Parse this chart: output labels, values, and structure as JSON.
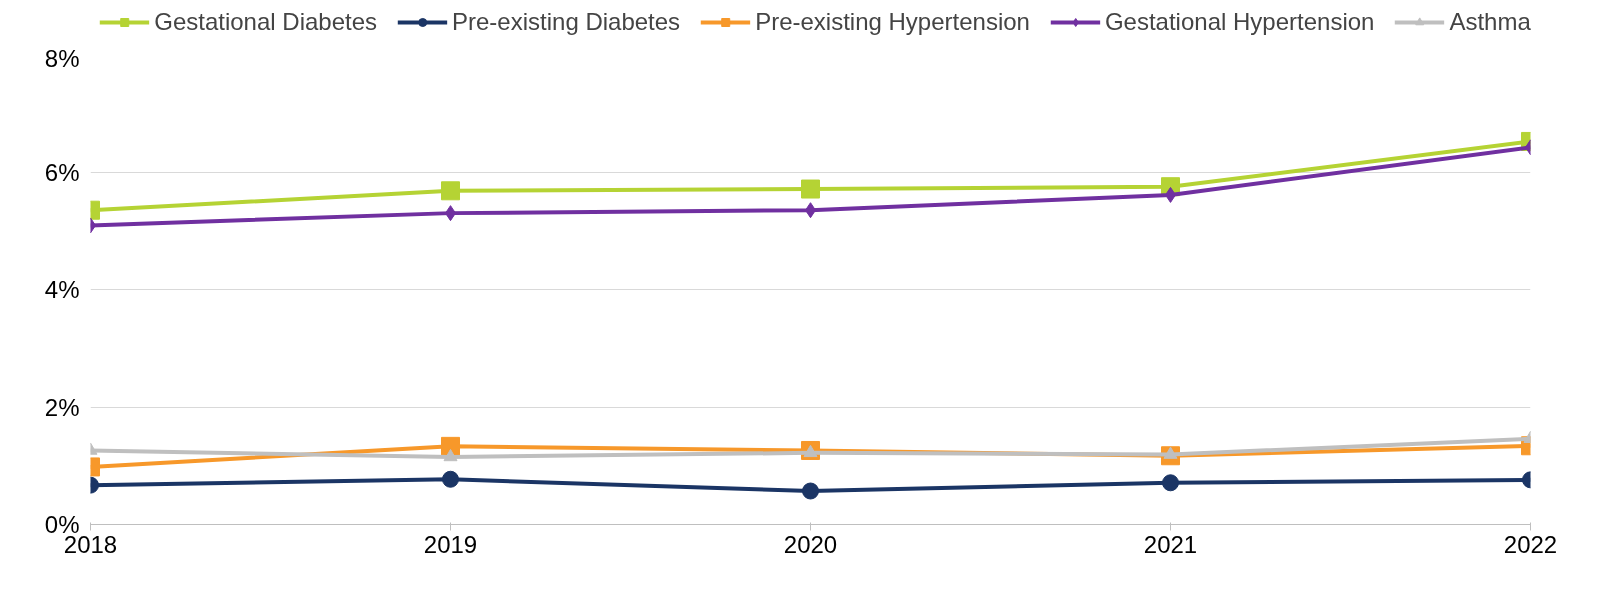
{
  "chart_data": {
    "type": "line",
    "x": [
      2018,
      2019,
      2020,
      2021,
      2022
    ],
    "xlim": [
      2018,
      2022
    ],
    "xticks": [
      2018,
      2019,
      2020,
      2021,
      2022
    ],
    "ylim": [
      0,
      8
    ],
    "yticks": [
      {
        "value": 0,
        "label": "0%"
      },
      {
        "value": 2,
        "label": "2%"
      },
      {
        "value": 4,
        "label": "4%"
      },
      {
        "value": 6,
        "label": "6%"
      },
      {
        "value": 8,
        "label": "8%"
      }
    ],
    "grid": "y",
    "legend": "top",
    "series": [
      {
        "name": "Gestational Diabetes",
        "color": "#b5d334",
        "marker": "square",
        "values": [
          5.35,
          5.68,
          5.71,
          5.75,
          6.52
        ]
      },
      {
        "name": "Pre-existing Diabetes",
        "color": "#1b3565",
        "marker": "circle",
        "values": [
          0.67,
          0.77,
          0.57,
          0.71,
          0.76
        ]
      },
      {
        "name": "Pre-existing Hypertension",
        "color": "#f7982a",
        "marker": "square",
        "values": [
          0.98,
          1.33,
          1.26,
          1.17,
          1.34
        ]
      },
      {
        "name": "Gestational Hypertension",
        "color": "#7030a0",
        "marker": "diamond",
        "values": [
          5.09,
          5.3,
          5.35,
          5.61,
          6.42
        ]
      },
      {
        "name": "Asthma",
        "color": "#bfbfbf",
        "marker": "triangle",
        "values": [
          1.26,
          1.15,
          1.22,
          1.19,
          1.46
        ]
      }
    ]
  }
}
